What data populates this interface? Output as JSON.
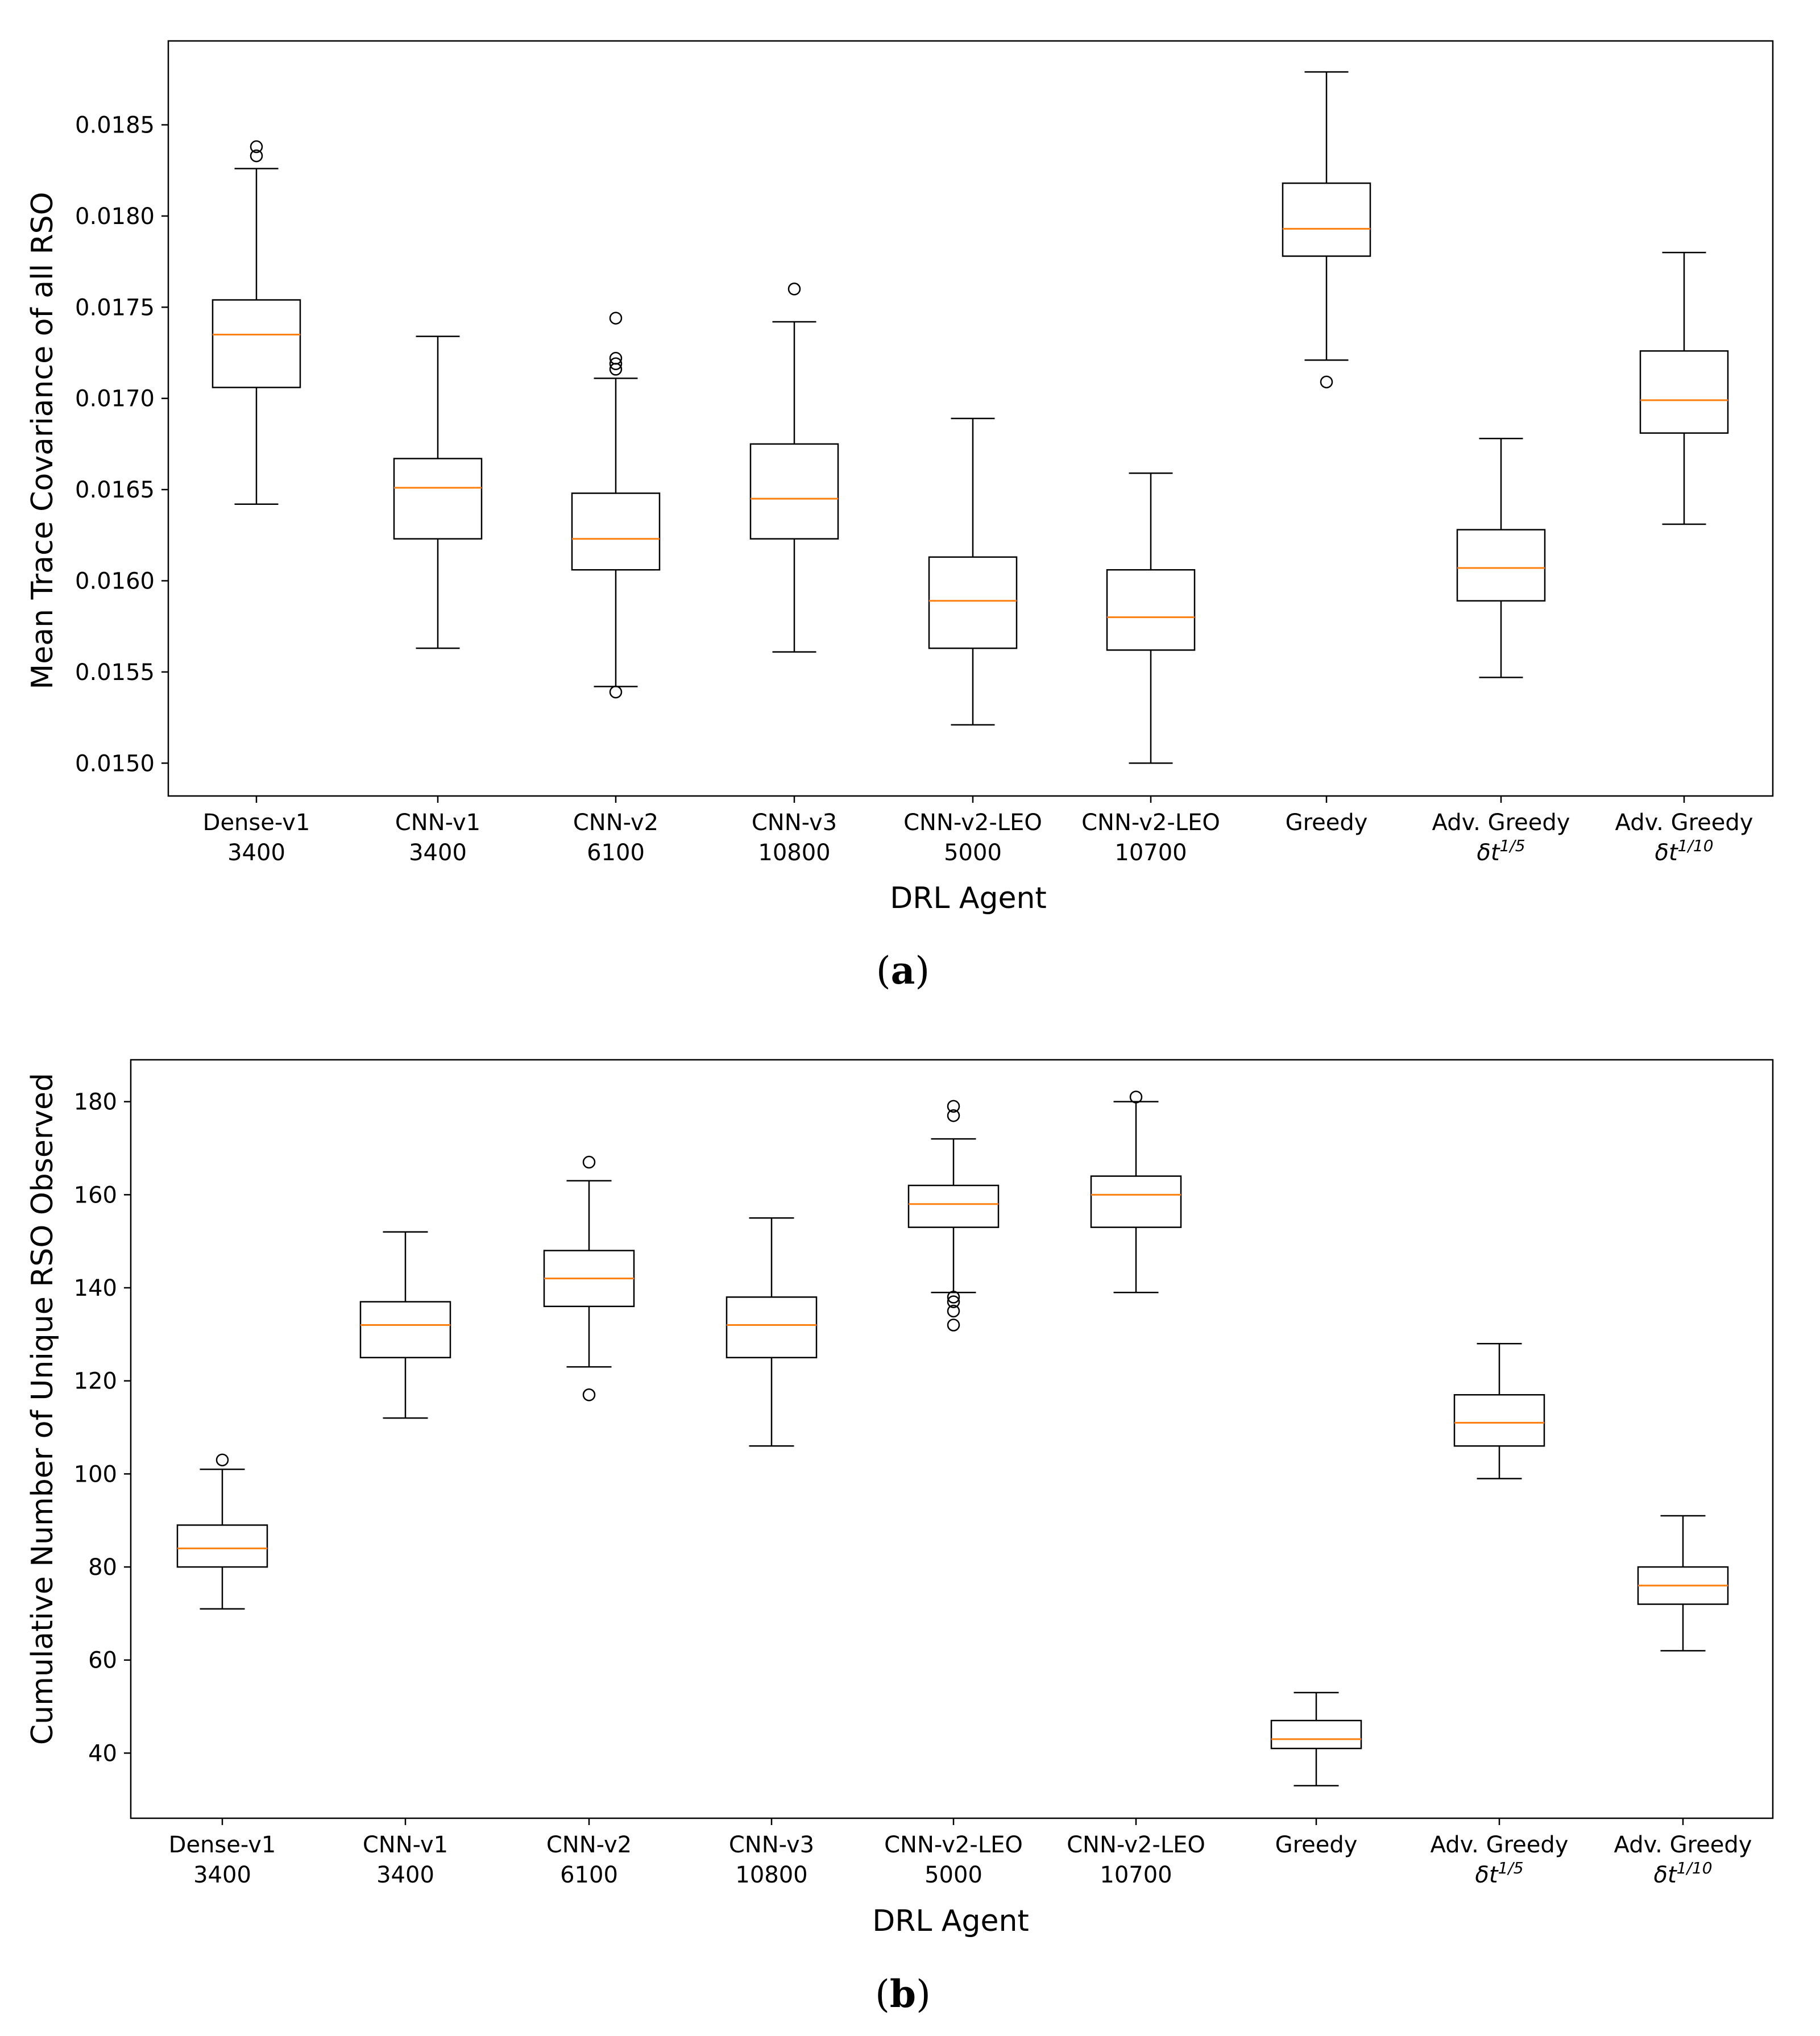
{
  "chart_data": [
    {
      "type": "box",
      "caption": {
        "open": "(",
        "letter": "a",
        "close": ")"
      },
      "ylabel": "Mean Trace Covariance of all RSO",
      "xlabel": "DRL Agent",
      "ylim": [
        0.01482,
        0.01896
      ],
      "yticks": [
        "0.0150",
        "0.0155",
        "0.0160",
        "0.0165",
        "0.0170",
        "0.0175",
        "0.0180",
        "0.0185"
      ],
      "categories": [
        {
          "line1": "Dense-v1",
          "line2": "3400"
        },
        {
          "line1": "CNN-v1",
          "line2": "3400"
        },
        {
          "line1": "CNN-v2",
          "line2": "6100"
        },
        {
          "line1": "CNN-v3",
          "line2": "10800"
        },
        {
          "line1": "CNN-v2-LEO",
          "line2": "5000"
        },
        {
          "line1": "CNN-v2-LEO",
          "line2": "10700"
        },
        {
          "line1": "Greedy",
          "line2": ""
        },
        {
          "line1": "Adv. Greedy",
          "sym": "δt",
          "sup": "1/5"
        },
        {
          "line1": "Adv. Greedy",
          "sym": "δt",
          "sup": "1/10"
        }
      ],
      "boxes": [
        {
          "whislo": 0.01642,
          "q1": 0.01706,
          "med": 0.01735,
          "q3": 0.01754,
          "whishi": 0.01826,
          "fliers": [
            0.01833,
            0.01838
          ]
        },
        {
          "whislo": 0.01563,
          "q1": 0.01623,
          "med": 0.01651,
          "q3": 0.01667,
          "whishi": 0.01734,
          "fliers": []
        },
        {
          "whislo": 0.01542,
          "q1": 0.01606,
          "med": 0.01623,
          "q3": 0.01648,
          "whishi": 0.01711,
          "fliers": [
            0.01539,
            0.01716,
            0.01719,
            0.01722,
            0.01744
          ]
        },
        {
          "whislo": 0.01561,
          "q1": 0.01623,
          "med": 0.01645,
          "q3": 0.01675,
          "whishi": 0.01742,
          "fliers": [
            0.0176
          ]
        },
        {
          "whislo": 0.01521,
          "q1": 0.01563,
          "med": 0.01589,
          "q3": 0.01613,
          "whishi": 0.01689,
          "fliers": []
        },
        {
          "whislo": 0.015,
          "q1": 0.01562,
          "med": 0.0158,
          "q3": 0.01606,
          "whishi": 0.01659,
          "fliers": []
        },
        {
          "whislo": 0.01721,
          "q1": 0.01778,
          "med": 0.01793,
          "q3": 0.01818,
          "whishi": 0.01879,
          "fliers": [
            0.01709
          ]
        },
        {
          "whislo": 0.01547,
          "q1": 0.01589,
          "med": 0.01607,
          "q3": 0.01628,
          "whishi": 0.01678,
          "fliers": []
        },
        {
          "whislo": 0.01631,
          "q1": 0.01681,
          "med": 0.01699,
          "q3": 0.01726,
          "whishi": 0.0178,
          "fliers": []
        }
      ]
    },
    {
      "type": "box",
      "caption": {
        "open": "(",
        "letter": "b",
        "close": ")"
      },
      "ylabel": "Cumulative Number of Unique RSO Observed",
      "xlabel": "DRL Agent",
      "ylim": [
        26,
        189
      ],
      "yticks": [
        "40",
        "60",
        "80",
        "100",
        "120",
        "140",
        "160",
        "180"
      ],
      "categories": [
        {
          "line1": "Dense-v1",
          "line2": "3400"
        },
        {
          "line1": "CNN-v1",
          "line2": "3400"
        },
        {
          "line1": "CNN-v2",
          "line2": "6100"
        },
        {
          "line1": "CNN-v3",
          "line2": "10800"
        },
        {
          "line1": "CNN-v2-LEO",
          "line2": "5000"
        },
        {
          "line1": "CNN-v2-LEO",
          "line2": "10700"
        },
        {
          "line1": "Greedy",
          "line2": ""
        },
        {
          "line1": "Adv. Greedy",
          "sym": "δt",
          "sup": "1/5"
        },
        {
          "line1": "Adv. Greedy",
          "sym": "δt",
          "sup": "1/10"
        }
      ],
      "boxes": [
        {
          "whislo": 71,
          "q1": 80,
          "med": 84,
          "q3": 89,
          "whishi": 101,
          "fliers": [
            103
          ]
        },
        {
          "whislo": 112,
          "q1": 125,
          "med": 132,
          "q3": 137,
          "whishi": 152,
          "fliers": []
        },
        {
          "whislo": 123,
          "q1": 136,
          "med": 142,
          "q3": 148,
          "whishi": 163,
          "fliers": [
            117,
            167
          ]
        },
        {
          "whislo": 106,
          "q1": 125,
          "med": 132,
          "q3": 138,
          "whishi": 155,
          "fliers": []
        },
        {
          "whislo": 139,
          "q1": 153,
          "med": 158,
          "q3": 162,
          "whishi": 172,
          "fliers": [
            132,
            135,
            137,
            138,
            177,
            179
          ]
        },
        {
          "whislo": 139,
          "q1": 153,
          "med": 160,
          "q3": 164,
          "whishi": 180,
          "fliers": [
            181
          ]
        },
        {
          "whislo": 33,
          "q1": 41,
          "med": 43,
          "q3": 47,
          "whishi": 53,
          "fliers": []
        },
        {
          "whislo": 99,
          "q1": 106,
          "med": 111,
          "q3": 117,
          "whishi": 128,
          "fliers": []
        },
        {
          "whislo": 62,
          "q1": 72,
          "med": 76,
          "q3": 80,
          "whishi": 91,
          "fliers": []
        }
      ]
    }
  ],
  "colors": {
    "median": "#ff7f0e",
    "box": "#000000",
    "background": "#ffffff"
  }
}
